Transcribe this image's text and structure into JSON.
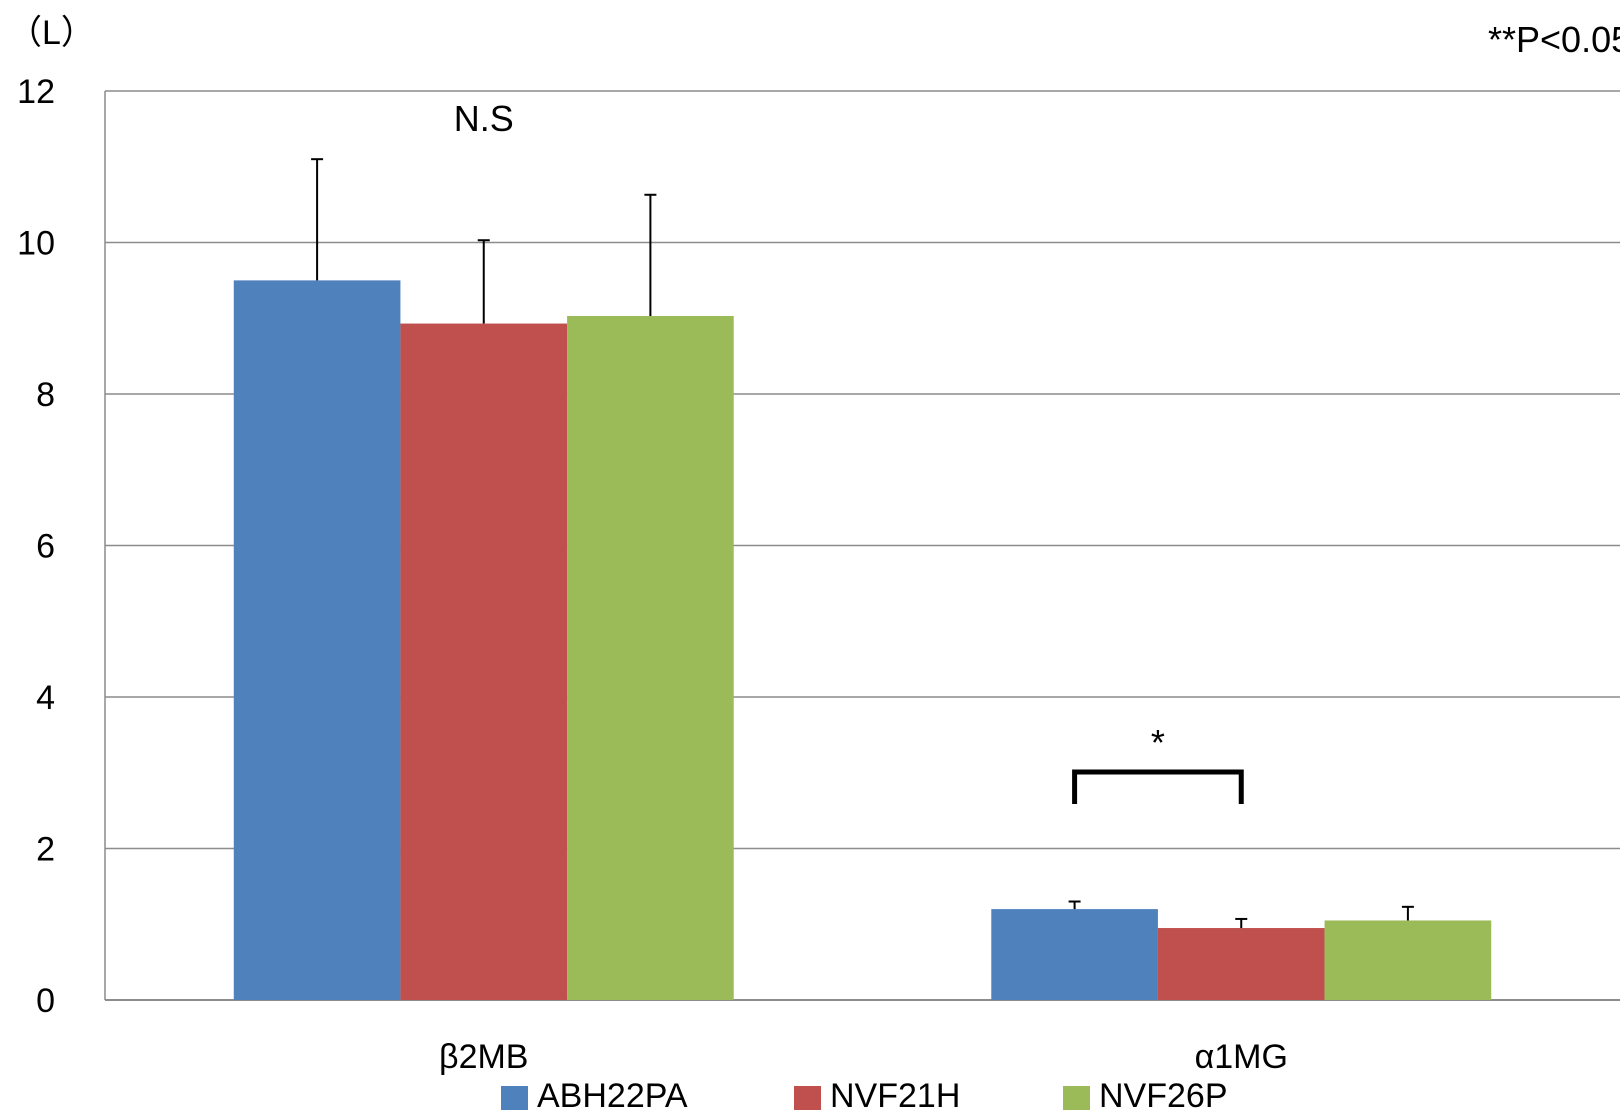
{
  "chart_data": {
    "type": "bar",
    "ylabel": "（L）",
    "significance_note": "**P<0.05",
    "ylim": [
      0,
      12
    ],
    "yticks": [
      0,
      2,
      4,
      6,
      8,
      10,
      12
    ],
    "grid": true,
    "legend_position": "bottom",
    "categories": [
      "β2MB",
      "α1MG"
    ],
    "series": [
      {
        "name": "ABH22PA",
        "color": "#4F81BD",
        "values": [
          9.5,
          1.2
        ],
        "errors": [
          1.6,
          0.1
        ]
      },
      {
        "name": "NVF21H",
        "color": "#C0504D",
        "values": [
          8.93,
          0.95
        ],
        "errors": [
          1.1,
          0.12
        ]
      },
      {
        "name": "NVF26P",
        "color": "#9BBB59",
        "values": [
          9.03,
          1.05
        ],
        "errors": [
          1.6,
          0.18
        ]
      }
    ],
    "annotations": [
      {
        "text": "N.S",
        "category": "β2MB"
      },
      {
        "text": "*",
        "category": "α1MG",
        "bracket_between": [
          "ABH22PA",
          "NVF21H"
        ]
      }
    ]
  }
}
